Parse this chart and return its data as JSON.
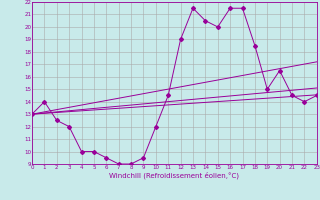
{
  "xlabel": "Windchill (Refroidissement éolien,°C)",
  "bg_color": "#c8eaea",
  "grid_color": "#aaaaaa",
  "line_color": "#990099",
  "x_min": 0,
  "x_max": 23,
  "y_min": 9,
  "y_max": 22,
  "curve1_x": [
    0,
    1,
    2,
    3,
    4,
    5,
    6,
    7,
    8,
    9,
    10,
    11,
    12,
    13,
    14,
    15,
    16,
    17,
    18,
    19,
    20,
    21,
    22,
    23
  ],
  "curve1_y": [
    13,
    14,
    12.5,
    12,
    10,
    10,
    9.5,
    9,
    9,
    9.5,
    12,
    14.5,
    19,
    21.5,
    20.5,
    20,
    21.5,
    21.5,
    18.5,
    15,
    16.5,
    14.5,
    14,
    14.5
  ],
  "curve2_x": [
    0,
    23
  ],
  "curve2_y": [
    13.0,
    17.2
  ],
  "curve3_x": [
    0,
    23
  ],
  "curve3_y": [
    13.0,
    15.1
  ],
  "curve4_x": [
    0,
    23
  ],
  "curve4_y": [
    13.0,
    14.55
  ],
  "xtick_labels": [
    "0",
    "1",
    "2",
    "3",
    "4",
    "5",
    "6",
    "7",
    "8",
    "9",
    "10",
    "11",
    "12",
    "13",
    "14",
    "15",
    "16",
    "17",
    "18",
    "19",
    "20",
    "21",
    "22",
    "23"
  ],
  "ytick_labels": [
    "9",
    "10",
    "11",
    "12",
    "13",
    "14",
    "15",
    "16",
    "17",
    "18",
    "19",
    "20",
    "21",
    "22"
  ]
}
